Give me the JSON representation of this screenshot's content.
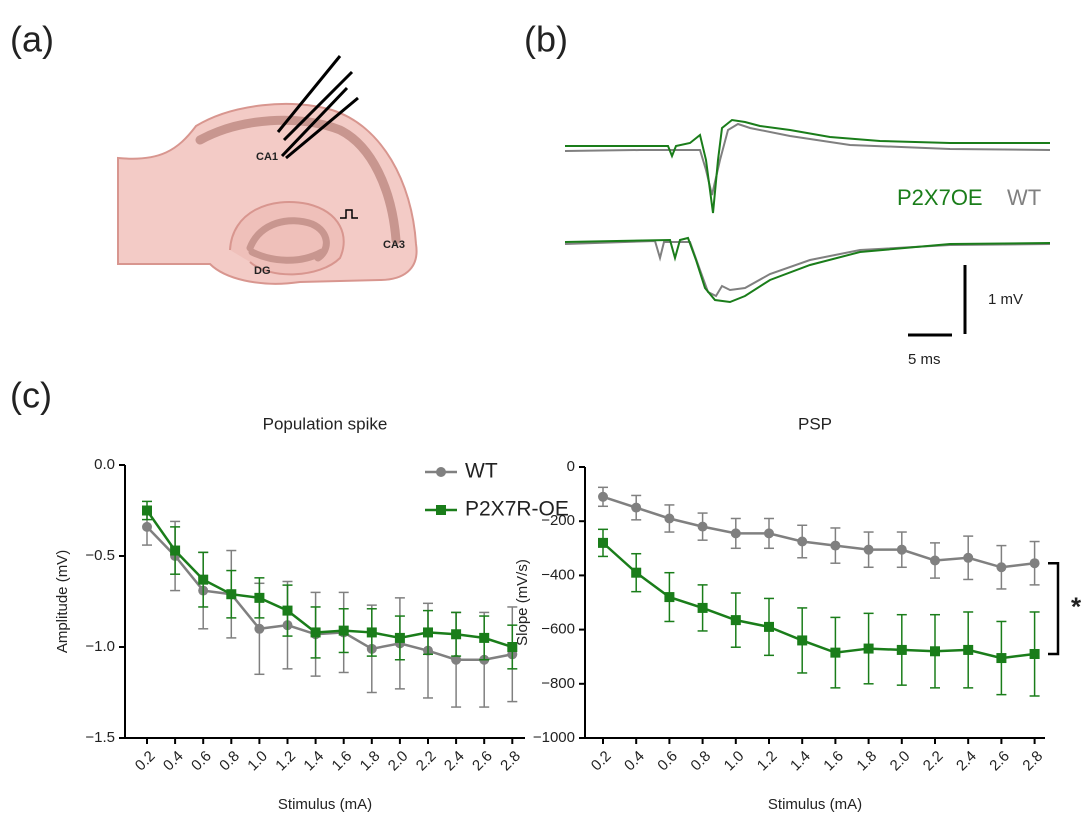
{
  "panel_labels": [
    "(a)",
    "(b)",
    "(c)"
  ],
  "diagram": {
    "labels": [
      "CA1",
      "CA3",
      "DG"
    ]
  },
  "traces": {
    "legend": [
      "P2X7OE",
      "WT"
    ],
    "scale_y": "1 mV",
    "scale_x": "5 ms"
  },
  "chart_data": [
    {
      "type": "line",
      "title": "Population spike",
      "x_label": "Stimulus (mA)",
      "y_label": "Amplitude (mV)",
      "categories": [
        "0.2",
        "0.4",
        "0.6",
        "0.8",
        "1.0",
        "1.2",
        "1.4",
        "1.6",
        "1.8",
        "2.0",
        "2.2",
        "2.4",
        "2.6",
        "2.8"
      ],
      "ylim": [
        -1.5,
        0
      ],
      "yticks": [
        {
          "value": 0,
          "label": "0.0"
        },
        {
          "value": -0.5,
          "label": "−0.5"
        },
        {
          "value": -1,
          "label": "−1.0"
        },
        {
          "value": -1.5,
          "label": "−1.5"
        }
      ],
      "legend": "upper right",
      "series": [
        {
          "name": "WT",
          "color": "#808080",
          "marker": "circle",
          "values": [
            -0.34,
            -0.5,
            -0.69,
            -0.71,
            -0.9,
            -0.88,
            -0.93,
            -0.92,
            -1.01,
            -0.98,
            -1.02,
            -1.07,
            -1.07,
            -1.04
          ],
          "errors": [
            0.1,
            0.19,
            0.21,
            0.24,
            0.25,
            0.24,
            0.23,
            0.22,
            0.24,
            0.25,
            0.26,
            0.26,
            0.26,
            0.26
          ]
        },
        {
          "name": "P2X7R-OE",
          "color": "#1a7d1a",
          "marker": "square",
          "values": [
            -0.25,
            -0.47,
            -0.63,
            -0.71,
            -0.73,
            -0.8,
            -0.92,
            -0.91,
            -0.92,
            -0.95,
            -0.92,
            -0.93,
            -0.95,
            -1.0
          ],
          "errors": [
            0.05,
            0.13,
            0.15,
            0.13,
            0.11,
            0.14,
            0.14,
            0.12,
            0.13,
            0.12,
            0.12,
            0.12,
            0.12,
            0.12
          ]
        }
      ]
    },
    {
      "type": "line",
      "title": "PSP",
      "x_label": "Stimulus (mA)",
      "y_label": "Slope (mV/s)",
      "categories": [
        "0.2",
        "0.4",
        "0.6",
        "0.8",
        "1.0",
        "1.2",
        "1.4",
        "1.6",
        "1.8",
        "2.0",
        "2.2",
        "2.4",
        "2.6",
        "2.8"
      ],
      "ylim": [
        -1000,
        0
      ],
      "yticks": [
        0,
        {
          "value": -200,
          "label": "−200"
        },
        {
          "value": -400,
          "label": "−400"
        },
        {
          "value": -600,
          "label": "−600"
        },
        {
          "value": -800,
          "label": "−800"
        },
        {
          "value": -1000,
          "label": "−1000"
        }
      ],
      "annotation": "*",
      "series": [
        {
          "name": "WT",
          "color": "#808080",
          "marker": "circle",
          "values": [
            -110,
            -150,
            -190,
            -220,
            -245,
            -245,
            -275,
            -290,
            -305,
            -305,
            -345,
            -335,
            -370,
            -355
          ],
          "errors": [
            35,
            45,
            50,
            50,
            55,
            55,
            60,
            65,
            65,
            65,
            65,
            80,
            80,
            80
          ]
        },
        {
          "name": "P2X7R-OE",
          "color": "#1a7d1a",
          "marker": "square",
          "values": [
            -280,
            -390,
            -480,
            -520,
            -565,
            -590,
            -640,
            -685,
            -670,
            -675,
            -680,
            -675,
            -705,
            -690
          ],
          "errors": [
            50,
            70,
            90,
            85,
            100,
            105,
            120,
            130,
            130,
            130,
            135,
            140,
            135,
            155
          ]
        }
      ]
    }
  ]
}
